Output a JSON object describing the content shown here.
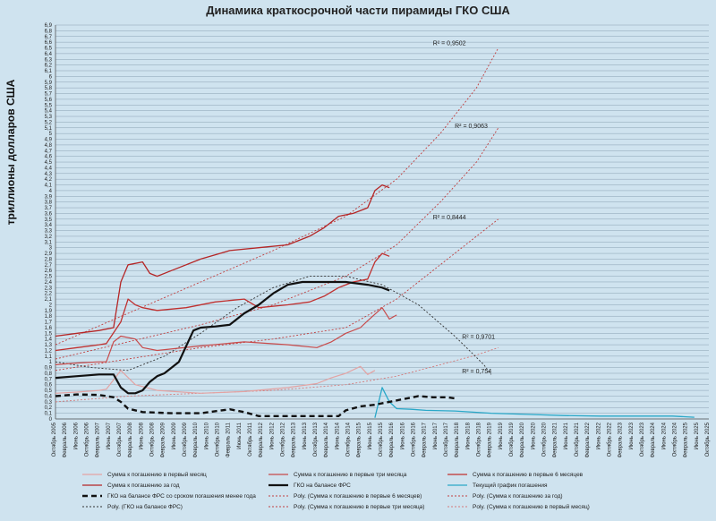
{
  "chart_data": {
    "type": "line",
    "title": "Динамика краткосрочной части пирамиды ГКО США",
    "ylabel": "триллионы долларов США",
    "ylim": [
      0,
      6.9
    ],
    "ytick_step": 0.1,
    "x_labels": [
      "Октябрь 2005",
      "Февраль 2006",
      "Июнь 2006",
      "Октябрь 2006",
      "Февраль 2007",
      "Июнь 2007",
      "Октябрь 2007",
      "Февраль 2008",
      "Июнь 2008",
      "Октябрь 2008",
      "Февраль 2009",
      "Июнь 2009",
      "Октябрь 2009",
      "Февраль 2010",
      "Июнь 2010",
      "Октябрь 2010",
      "Февраль 2011",
      "Июнь 2011",
      "Октябрь 2011",
      "Февраль 2012",
      "Июнь 2012",
      "Октябрь 2012",
      "Февраль 2013",
      "Июнь 2013",
      "Октябрь 2013",
      "Февраль 2014",
      "Июнь 2014",
      "Октябрь 2014",
      "Февраль 2015",
      "Июнь 2015",
      "Октябрь 2015",
      "Февраль 2016",
      "Июнь 2016",
      "Октябрь 2016",
      "Февраль 2017",
      "Июнь 2017",
      "Октябрь 2017",
      "Февраль 2018",
      "Июнь 2018",
      "Октябрь 2018",
      "Февраль 2019",
      "Июнь 2019",
      "Октябрь 2019",
      "Февраль 2020",
      "Июнь 2020",
      "Октябрь 2020",
      "Февраль 2021",
      "Июнь 2021",
      "Октябрь 2021",
      "Февраль 2022",
      "Июнь 2022",
      "Октябрь 2022",
      "Февраль 2023",
      "Июнь 2023",
      "Октябрь 2023",
      "Февраль 2024",
      "Июнь 2024",
      "Октябрь 2024",
      "Февраль 2025",
      "Июнь 2025",
      "Октябрь 2025"
    ],
    "series": [
      {
        "name": "Сумма к погашению в первый месяц",
        "color": "#e3a3a3",
        "width": 1.2,
        "points": [
          [
            0,
            0.45
          ],
          [
            3,
            0.47
          ],
          [
            6,
            0.5
          ],
          [
            7,
            0.52
          ],
          [
            9,
            0.85
          ],
          [
            11,
            0.6
          ],
          [
            14,
            0.5
          ],
          [
            20,
            0.45
          ],
          [
            26,
            0.48
          ],
          [
            32,
            0.55
          ],
          [
            36,
            0.62
          ],
          [
            38,
            0.72
          ],
          [
            40,
            0.8
          ],
          [
            42,
            0.92
          ],
          [
            43,
            0.78
          ],
          [
            44,
            0.85
          ]
        ]
      },
      {
        "name": "Сумма к погашению в первые три месяца",
        "color": "#c84a4a",
        "width": 1.2,
        "points": [
          [
            0,
            0.95
          ],
          [
            3,
            0.98
          ],
          [
            6,
            1.0
          ],
          [
            7,
            1.0
          ],
          [
            8,
            1.35
          ],
          [
            9,
            1.45
          ],
          [
            11,
            1.4
          ],
          [
            12,
            1.25
          ],
          [
            14,
            1.2
          ],
          [
            20,
            1.28
          ],
          [
            26,
            1.35
          ],
          [
            32,
            1.3
          ],
          [
            36,
            1.25
          ],
          [
            38,
            1.35
          ],
          [
            40,
            1.5
          ],
          [
            42,
            1.6
          ],
          [
            43,
            1.72
          ],
          [
            45,
            1.95
          ],
          [
            46,
            1.75
          ],
          [
            47,
            1.82
          ]
        ]
      },
      {
        "name": "Сумма к погашению в первые 6 месяцев",
        "color": "#c0302f",
        "width": 1.3,
        "points": [
          [
            0,
            1.2
          ],
          [
            3,
            1.25
          ],
          [
            6,
            1.3
          ],
          [
            7,
            1.32
          ],
          [
            9,
            1.7
          ],
          [
            10,
            2.1
          ],
          [
            11,
            2.0
          ],
          [
            12,
            1.95
          ],
          [
            14,
            1.9
          ],
          [
            18,
            1.95
          ],
          [
            22,
            2.05
          ],
          [
            26,
            2.1
          ],
          [
            28,
            1.95
          ],
          [
            32,
            2.0
          ],
          [
            35,
            2.05
          ],
          [
            37,
            2.15
          ],
          [
            39,
            2.3
          ],
          [
            41,
            2.4
          ],
          [
            43,
            2.45
          ],
          [
            44,
            2.75
          ],
          [
            45,
            2.9
          ],
          [
            46,
            2.85
          ]
        ]
      },
      {
        "name": "Сумма к погашению за год",
        "color": "#b52626",
        "width": 1.3,
        "points": [
          [
            0,
            1.45
          ],
          [
            3,
            1.5
          ],
          [
            6,
            1.55
          ],
          [
            8,
            1.6
          ],
          [
            9,
            2.4
          ],
          [
            10,
            2.7
          ],
          [
            12,
            2.75
          ],
          [
            13,
            2.55
          ],
          [
            14,
            2.5
          ],
          [
            16,
            2.6
          ],
          [
            20,
            2.8
          ],
          [
            24,
            2.95
          ],
          [
            28,
            3.0
          ],
          [
            32,
            3.05
          ],
          [
            35,
            3.2
          ],
          [
            37,
            3.35
          ],
          [
            39,
            3.55
          ],
          [
            41,
            3.6
          ],
          [
            43,
            3.7
          ],
          [
            44,
            4.0
          ],
          [
            45,
            4.1
          ],
          [
            46,
            4.05
          ]
        ]
      },
      {
        "name": "ГКО на балансе ФРС",
        "color": "#111111",
        "width": 2.2,
        "points": [
          [
            0,
            0.72
          ],
          [
            3,
            0.75
          ],
          [
            6,
            0.78
          ],
          [
            8,
            0.78
          ],
          [
            9,
            0.55
          ],
          [
            10,
            0.45
          ],
          [
            11,
            0.45
          ],
          [
            12,
            0.5
          ],
          [
            13,
            0.65
          ],
          [
            14,
            0.75
          ],
          [
            15,
            0.8
          ],
          [
            17,
            1.0
          ],
          [
            19,
            1.55
          ],
          [
            20,
            1.6
          ],
          [
            22,
            1.62
          ],
          [
            24,
            1.65
          ],
          [
            26,
            1.85
          ],
          [
            28,
            2.0
          ],
          [
            30,
            2.2
          ],
          [
            32,
            2.35
          ],
          [
            34,
            2.4
          ],
          [
            40,
            2.4
          ],
          [
            43,
            2.35
          ],
          [
            45,
            2.3
          ],
          [
            46,
            2.25
          ]
        ]
      },
      {
        "name": "Текущий график погашения",
        "color": "#2aa8c8",
        "width": 1.3,
        "points": [
          [
            44,
            0.02
          ],
          [
            45,
            0.55
          ],
          [
            46,
            0.3
          ],
          [
            47,
            0.18
          ],
          [
            49,
            0.17
          ],
          [
            51,
            0.15
          ],
          [
            55,
            0.14
          ],
          [
            60,
            0.1
          ],
          [
            65,
            0.08
          ],
          [
            70,
            0.06
          ],
          [
            75,
            0.05
          ],
          [
            80,
            0.05
          ],
          [
            85,
            0.05
          ],
          [
            88,
            0.03
          ]
        ]
      }
    ],
    "dashed_series": {
      "name": "ГКО на балансе ФРС со сроком погашения менее года",
      "color": "#111111",
      "width": 2.4,
      "points": [
        [
          0,
          0.4
        ],
        [
          3,
          0.43
        ],
        [
          6,
          0.42
        ],
        [
          8,
          0.38
        ],
        [
          9,
          0.3
        ],
        [
          10,
          0.18
        ],
        [
          12,
          0.12
        ],
        [
          16,
          0.1
        ],
        [
          20,
          0.1
        ],
        [
          24,
          0.17
        ],
        [
          26,
          0.12
        ],
        [
          28,
          0.05
        ],
        [
          32,
          0.05
        ],
        [
          36,
          0.05
        ],
        [
          39,
          0.05
        ],
        [
          40,
          0.15
        ],
        [
          42,
          0.22
        ],
        [
          44,
          0.25
        ],
        [
          46,
          0.3
        ],
        [
          48,
          0.35
        ],
        [
          50,
          0.4
        ],
        [
          52,
          0.38
        ],
        [
          54,
          0.38
        ],
        [
          55,
          0.36
        ]
      ]
    },
    "trendlines": [
      {
        "name": "Poly. (Сумма к погашению за год)",
        "r2": "R² = 0,9502",
        "color": "#c04040",
        "points": [
          [
            0,
            1.3
          ],
          [
            10,
            1.85
          ],
          [
            20,
            2.4
          ],
          [
            30,
            2.95
          ],
          [
            40,
            3.55
          ],
          [
            47,
            4.2
          ],
          [
            53,
            5.0
          ],
          [
            58,
            5.8
          ],
          [
            61,
            6.5
          ]
        ],
        "r2_label_at": [
          52,
          6.55
        ]
      },
      {
        "name": "Poly. (Сумма к погашению в первые 6 месяцев)",
        "r2": "R² = 0,9063",
        "color": "#c04040",
        "points": [
          [
            0,
            1.05
          ],
          [
            10,
            1.35
          ],
          [
            20,
            1.65
          ],
          [
            30,
            2.0
          ],
          [
            40,
            2.5
          ],
          [
            47,
            3.05
          ],
          [
            53,
            3.8
          ],
          [
            58,
            4.5
          ],
          [
            61,
            5.1
          ]
        ],
        "r2_label_at": [
          55,
          5.1
        ]
      },
      {
        "name": "Poly. (Сумма к погашению в первые три месяца)",
        "r2": "R² = 0,8444",
        "color": "#c04040",
        "points": [
          [
            0,
            0.85
          ],
          [
            10,
            1.05
          ],
          [
            20,
            1.25
          ],
          [
            30,
            1.4
          ],
          [
            40,
            1.6
          ],
          [
            47,
            2.1
          ],
          [
            53,
            2.7
          ],
          [
            58,
            3.2
          ],
          [
            61,
            3.5
          ]
        ],
        "r2_label_at": [
          52,
          3.5
        ]
      },
      {
        "name": "Poly. (Сумма к погашению в первый месяц)",
        "r2": "R² = 0,9701",
        "color": "#d47a7a",
        "points": [
          [
            0,
            0.3
          ],
          [
            10,
            0.4
          ],
          [
            20,
            0.45
          ],
          [
            30,
            0.5
          ],
          [
            40,
            0.6
          ],
          [
            47,
            0.75
          ],
          [
            53,
            0.95
          ],
          [
            58,
            1.12
          ],
          [
            61,
            1.25
          ]
        ],
        "r2_label_at": [
          56,
          1.4
        ]
      },
      {
        "name": "Poly. (ГКО на балансе ФРС)",
        "r2": "R² = 0,754",
        "color": "#333333",
        "points": [
          [
            0,
            1.0
          ],
          [
            5,
            0.9
          ],
          [
            10,
            0.85
          ],
          [
            15,
            1.1
          ],
          [
            20,
            1.5
          ],
          [
            25,
            1.95
          ],
          [
            30,
            2.3
          ],
          [
            35,
            2.5
          ],
          [
            40,
            2.5
          ],
          [
            45,
            2.35
          ],
          [
            50,
            2.0
          ],
          [
            55,
            1.45
          ],
          [
            59,
            0.95
          ],
          [
            60,
            0.78
          ]
        ],
        "r2_label_at": [
          56,
          0.8
        ]
      }
    ],
    "legend": {
      "placement": "bottom",
      "rows": [
        [
          "Сумма к погашению в первый месяц",
          "Сумма к погашению в первые три месяца",
          "Сумма к погашению в первые 6 месяцев"
        ],
        [
          "Сумма к погашению за год",
          "ГКО на балансе ФРС",
          "Текущий график погашения"
        ],
        [
          "ГКО на балансе ФРС со сроком погашения менее года",
          "Poly. (Сумма к погашению в первые 6 месяцев)",
          "Poly. (Сумма к погашению за год)"
        ],
        [
          "Poly. (ГКО на балансе ФРС)",
          "Poly. (Сумма к погашению в первые три месяца)",
          "Poly. (Сумма к погашению в первый месяц)"
        ]
      ]
    },
    "grid": true
  }
}
